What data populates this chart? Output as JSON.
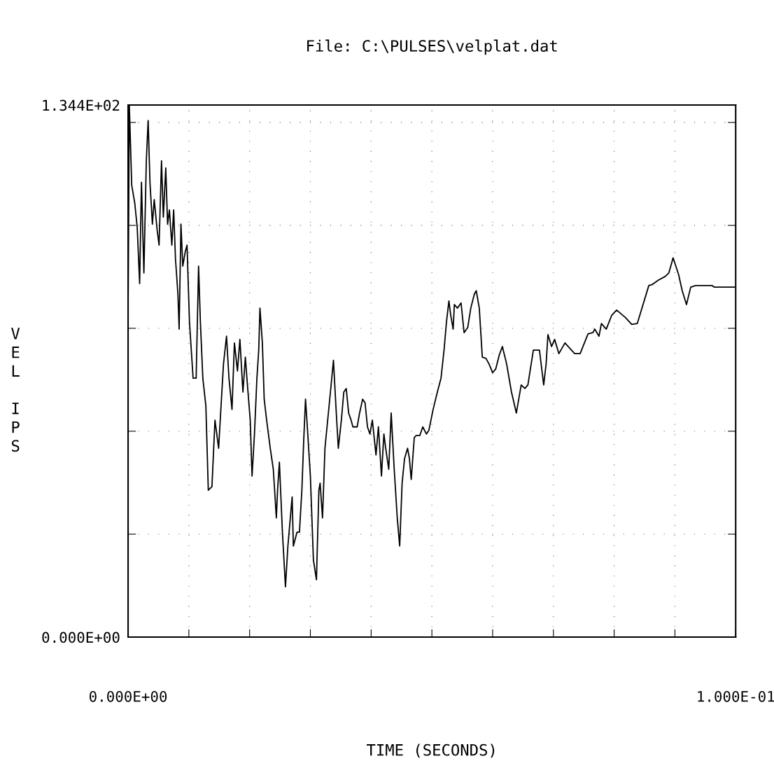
{
  "chart_data": {
    "type": "line",
    "title": "File: C:\\PULSES\\velplat.dat",
    "xlabel": "TIME (SECONDS)",
    "ylabel": "VEL IPS",
    "xlim": [
      0,
      0.1
    ],
    "ylim": [
      0,
      134.4
    ],
    "xticks": [
      {
        "value": 0,
        "label": "0.000E+00"
      },
      {
        "value": 0.01,
        "label": null
      },
      {
        "value": 0.02,
        "label": null
      },
      {
        "value": 0.03,
        "label": null
      },
      {
        "value": 0.04,
        "label": null
      },
      {
        "value": 0.05,
        "label": null
      },
      {
        "value": 0.06,
        "label": null
      },
      {
        "value": 0.07,
        "label": null
      },
      {
        "value": 0.08,
        "label": null
      },
      {
        "value": 0.09,
        "label": null
      },
      {
        "value": 0.1,
        "label": "1.000E-01"
      }
    ],
    "yticks": [
      {
        "value": 0,
        "label": "0.000E+00"
      },
      {
        "value": 26,
        "label": null
      },
      {
        "value": 52,
        "label": null
      },
      {
        "value": 78,
        "label": null
      },
      {
        "value": 104,
        "label": null
      },
      {
        "value": 130,
        "label": null
      },
      {
        "value": 134.4,
        "label": "1.344E+02"
      }
    ],
    "grid": true,
    "marker": "none",
    "line_style": "solid",
    "series": [
      {
        "color": "#000000",
        "x": [
          0,
          0.0002,
          0.0006,
          0.0011,
          0.0015,
          0.0019,
          0.0022,
          0.0026,
          0.003,
          0.0033,
          0.0036,
          0.004,
          0.0043,
          0.0048,
          0.0051,
          0.0055,
          0.0058,
          0.0062,
          0.0065,
          0.0068,
          0.0072,
          0.0075,
          0.0078,
          0.0082,
          0.0084,
          0.0087,
          0.009,
          0.0094,
          0.0097,
          0.0101,
          0.0107,
          0.0112,
          0.0116,
          0.0119,
          0.0123,
          0.0128,
          0.0132,
          0.0138,
          0.0143,
          0.0149,
          0.0151,
          0.0157,
          0.0162,
          0.0166,
          0.0171,
          0.0175,
          0.018,
          0.0184,
          0.0189,
          0.0193,
          0.0196,
          0.0201,
          0.0204,
          0.0208,
          0.0212,
          0.0215,
          0.0217,
          0.0221,
          0.0224,
          0.0228,
          0.0234,
          0.0239,
          0.0244,
          0.0246,
          0.0249,
          0.0254,
          0.0259,
          0.0263,
          0.0267,
          0.027,
          0.0272,
          0.0278,
          0.0282,
          0.0286,
          0.0289,
          0.0292,
          0.0295,
          0.03,
          0.0305,
          0.031,
          0.0314,
          0.0316,
          0.032,
          0.0324,
          0.0333,
          0.0338,
          0.0342,
          0.0346,
          0.0351,
          0.0355,
          0.0359,
          0.0363,
          0.0367,
          0.037,
          0.0377,
          0.0381,
          0.0386,
          0.039,
          0.0394,
          0.0398,
          0.0402,
          0.0408,
          0.0412,
          0.0417,
          0.0421,
          0.0424,
          0.0429,
          0.0433,
          0.0438,
          0.0443,
          0.0447,
          0.0451,
          0.0455,
          0.046,
          0.0463,
          0.0466,
          0.0471,
          0.0474,
          0.048,
          0.0485,
          0.0491,
          0.0495,
          0.0502,
          0.0509,
          0.0515,
          0.052,
          0.0524,
          0.0528,
          0.0531,
          0.0535,
          0.0537,
          0.0542,
          0.0548,
          0.0553,
          0.0559,
          0.0564,
          0.057,
          0.0573,
          0.0578,
          0.0583,
          0.0589,
          0.0594,
          0.06,
          0.0605,
          0.0611,
          0.0616,
          0.0623,
          0.0631,
          0.0639,
          0.0647,
          0.0653,
          0.0658,
          0.0667,
          0.0677,
          0.0684,
          0.0688,
          0.0691,
          0.0697,
          0.0702,
          0.0709,
          0.0719,
          0.0735,
          0.0744,
          0.0757,
          0.0765,
          0.0768,
          0.0775,
          0.0779,
          0.0787,
          0.0796,
          0.0804,
          0.0818,
          0.0829,
          0.0838,
          0.0857,
          0.0862,
          0.0873,
          0.0884,
          0.089,
          0.0897,
          0.0906,
          0.0912,
          0.0919,
          0.0926,
          0.0934,
          0.0961,
          0.0965,
          0.0998
        ],
        "values": [
          83.1,
          134.4,
          114.1,
          109.6,
          103.5,
          89.3,
          114.9,
          92.0,
          120.3,
          130.5,
          114.9,
          104.3,
          110.5,
          102.6,
          99.0,
          120.3,
          106.1,
          118.5,
          104.3,
          107.9,
          99.0,
          107.9,
          95.5,
          86.7,
          77.8,
          104.3,
          93.7,
          97.3,
          99.0,
          79.6,
          65.4,
          65.4,
          93.7,
          79.6,
          65.4,
          58.4,
          37.1,
          38.0,
          54.8,
          47.7,
          53.1,
          69.0,
          76.0,
          65.4,
          57.5,
          74.3,
          67.2,
          75.2,
          61.9,
          70.7,
          64.5,
          54.8,
          40.7,
          51.3,
          65.4,
          72.5,
          83.1,
          74.3,
          60.1,
          54.8,
          47.7,
          42.4,
          30.1,
          37.1,
          44.2,
          26.5,
          12.7,
          23.0,
          30.1,
          35.4,
          23.0,
          26.5,
          26.5,
          37.1,
          49.5,
          60.1,
          53.1,
          40.7,
          19.5,
          14.5,
          37.1,
          38.9,
          30.1,
          47.7,
          61.9,
          69.9,
          58.4,
          47.7,
          54.8,
          61.9,
          62.8,
          56.6,
          54.8,
          53.1,
          53.1,
          56.6,
          60.1,
          59.2,
          53.1,
          51.3,
          54.8,
          46.0,
          53.1,
          40.7,
          51.3,
          47.7,
          42.4,
          56.6,
          42.4,
          30.1,
          23.0,
          38.9,
          45.1,
          47.7,
          45.1,
          39.8,
          50.4,
          50.9,
          50.9,
          53.1,
          51.3,
          52.2,
          57.5,
          61.9,
          65.4,
          72.5,
          79.6,
          84.9,
          81.3,
          77.8,
          84.0,
          83.1,
          84.4,
          76.9,
          78.2,
          83.1,
          86.7,
          87.5,
          83.1,
          70.7,
          70.4,
          69.0,
          66.8,
          67.7,
          71.3,
          73.4,
          69.0,
          61.9,
          56.6,
          63.7,
          62.8,
          63.7,
          72.5,
          72.5,
          63.7,
          69.0,
          76.4,
          73.4,
          75.2,
          71.6,
          74.3,
          71.6,
          71.6,
          76.6,
          76.9,
          77.8,
          76.0,
          79.2,
          77.8,
          81.3,
          82.6,
          80.8,
          79.0,
          79.2,
          88.8,
          89.0,
          90.2,
          91.1,
          92.0,
          95.8,
          91.6,
          87.5,
          84.0,
          88.4,
          88.8,
          88.8,
          88.4,
          88.4
        ]
      }
    ]
  }
}
